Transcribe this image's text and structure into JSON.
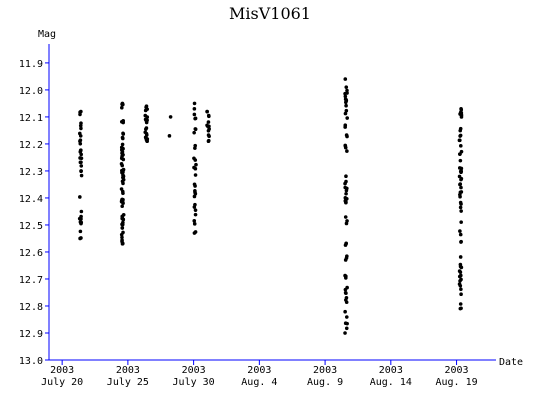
{
  "chart_data": {
    "type": "scatter",
    "title": "MisV1061",
    "xlabel": "Date",
    "ylabel": "Mag",
    "y_inverted": true,
    "ylim": [
      11.83,
      13.0
    ],
    "y_ticks": [
      "11.9",
      "12.0",
      "12.1",
      "12.2",
      "12.3",
      "12.4",
      "12.5",
      "12.6",
      "12.7",
      "12.8",
      "12.9",
      "13.0"
    ],
    "xlim": [
      "2003-07-19",
      "2003-08-22"
    ],
    "x_ticks": [
      {
        "year": "2003",
        "label": "July 20",
        "date": "2003-07-20"
      },
      {
        "year": "2003",
        "label": "July 25",
        "date": "2003-07-25"
      },
      {
        "year": "2003",
        "label": "July 30",
        "date": "2003-07-30"
      },
      {
        "year": "2003",
        "label": "Aug. 4",
        "date": "2003-08-04"
      },
      {
        "year": "2003",
        "label": "Aug. 9",
        "date": "2003-08-09"
      },
      {
        "year": "2003",
        "label": "Aug. 14",
        "date": "2003-08-14"
      },
      {
        "year": "2003",
        "label": "Aug. 19",
        "date": "2003-08-19"
      }
    ],
    "grid": false,
    "point_color": "#000000",
    "axis_color": "#0000ff",
    "observations": [
      {
        "date": "2003-07-21.4",
        "mag_min": 12.08,
        "mag_max": 12.55,
        "n": 34
      },
      {
        "date": "2003-07-24.6",
        "mag_min": 12.05,
        "mag_max": 12.57,
        "n": 70
      },
      {
        "date": "2003-07-26.4",
        "mag_min": 12.06,
        "mag_max": 12.19,
        "n": 24
      },
      {
        "date": "2003-07-28.2",
        "mag_min": 12.1,
        "mag_max": 12.17,
        "n": 2
      },
      {
        "date": "2003-07-30.1",
        "mag_min": 12.05,
        "mag_max": 12.53,
        "n": 30
      },
      {
        "date": "2003-07-31.1",
        "mag_min": 12.08,
        "mag_max": 12.19,
        "n": 14
      },
      {
        "date": "2003-08-10.6",
        "mag_min": 11.96,
        "mag_max": 12.9,
        "n": 60
      },
      {
        "date": "2003-08-19.3",
        "mag_min": 12.07,
        "mag_max": 12.81,
        "n": 60
      }
    ]
  }
}
